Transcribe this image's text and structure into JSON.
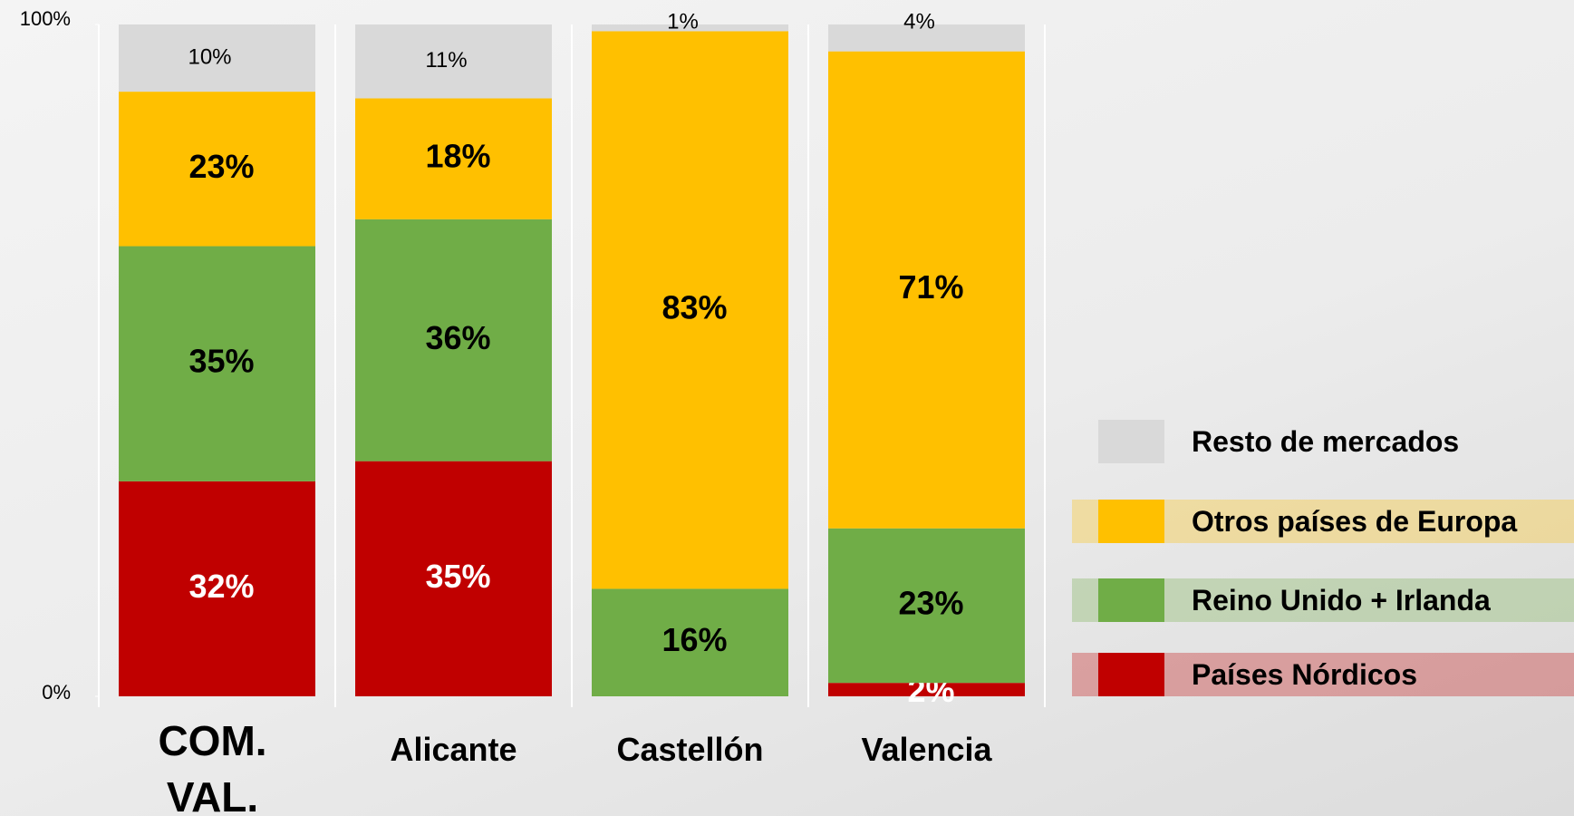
{
  "chart_data": {
    "type": "stacked_bar",
    "categories": [
      "COM. VAL.",
      "Alicante",
      "Castellón",
      "Valencia"
    ],
    "series": [
      {
        "name": "Países Nórdicos",
        "color": "#c00000",
        "label_color": "#ffffff",
        "values": [
          32,
          35,
          0,
          2
        ],
        "value_labels": [
          "32%",
          "35%",
          null,
          "2%"
        ]
      },
      {
        "name": "Reino Unido + Irlanda",
        "color": "#70ad47",
        "label_color": "#000000",
        "values": [
          35,
          36,
          16,
          23
        ],
        "value_labels": [
          "35%",
          "36%",
          "16%",
          "23%"
        ]
      },
      {
        "name": "Otros países de Europa",
        "color": "#ffc000",
        "label_color": "#000000",
        "values": [
          23,
          18,
          83,
          71
        ],
        "value_labels": [
          "23%",
          "18%",
          "83%",
          "71%"
        ]
      },
      {
        "name": "Resto de mercados",
        "color": "#d9d9d9",
        "label_color": "#000000",
        "values": [
          10,
          11,
          1,
          4
        ],
        "value_labels": [
          "10%",
          "11%",
          "1%",
          "4%"
        ]
      }
    ],
    "ylim": [
      0,
      100
    ],
    "yticks": [
      {
        "value": 0,
        "label": "0%"
      },
      {
        "value": 100,
        "label": "100%"
      }
    ]
  }
}
